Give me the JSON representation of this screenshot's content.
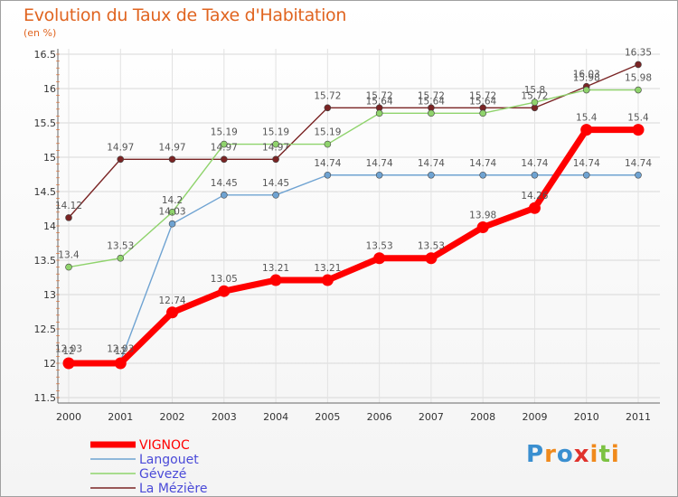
{
  "chart_data": {
    "type": "line",
    "title": "Evolution du Taux de Taxe d'Habitation",
    "subtitle": "(en %)",
    "x": [
      2000,
      2001,
      2002,
      2003,
      2004,
      2005,
      2006,
      2007,
      2008,
      2009,
      2010,
      2011
    ],
    "ylim": [
      11.5,
      16.5
    ],
    "yticks": [
      11.5,
      12,
      12.5,
      13,
      13.5,
      14,
      14.5,
      15,
      15.5,
      16,
      16.5
    ],
    "grid": true,
    "legend_position": "bottom-left",
    "series": [
      {
        "name": "VIGNOC",
        "color": "#ff0000",
        "values": [
          12,
          12,
          12.74,
          13.05,
          13.21,
          13.21,
          13.53,
          13.53,
          13.98,
          14.26,
          15.4,
          15.4
        ],
        "labels": [
          "12",
          "12",
          "12.74",
          "13.05",
          "13.21",
          "13.21",
          "13.53",
          "13.53",
          "13.98",
          "14.26",
          "15.4",
          "15.4"
        ]
      },
      {
        "name": "Langouet",
        "color": "#6fa3d2",
        "values": [
          12.03,
          12.03,
          14.03,
          14.45,
          14.45,
          14.74,
          14.74,
          14.74,
          14.74,
          14.74,
          14.74,
          14.74
        ],
        "labels": [
          "12.03",
          "12.03",
          "14.03",
          "14.45",
          "14.45",
          "14.74",
          "14.74",
          "14.74",
          "14.74",
          "14.74",
          "14.74",
          "14.74"
        ]
      },
      {
        "name": "Gévezé",
        "color": "#8fd36c",
        "values": [
          13.4,
          13.53,
          14.2,
          15.19,
          15.19,
          15.19,
          15.64,
          15.64,
          15.64,
          15.8,
          15.98,
          15.98
        ],
        "labels": [
          "13.4",
          "13.53",
          "14.2",
          "15.19",
          "15.19",
          "15.19",
          "15.64",
          "15.64",
          "15.64",
          "15.8",
          "15.98",
          "15.98"
        ]
      },
      {
        "name": "La Mézière",
        "color": "#7a2424",
        "values": [
          14.12,
          14.97,
          14.97,
          14.97,
          14.97,
          15.72,
          15.72,
          15.72,
          15.72,
          15.72,
          16.03,
          16.35
        ],
        "labels": [
          "14.12",
          "14.97",
          "14.97",
          "14.97",
          "14.97",
          "15.72",
          "15.72",
          "15.72",
          "15.72",
          "15.72",
          "16.03",
          "16.35"
        ]
      }
    ]
  },
  "logo": {
    "text": "Proxiti"
  }
}
